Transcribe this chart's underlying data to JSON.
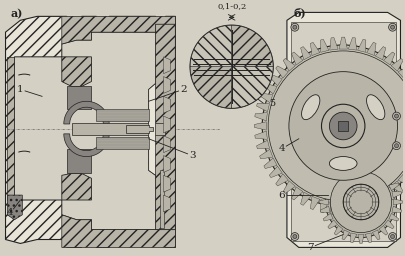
{
  "background_color": "#ccc8ba",
  "label_a": "а)",
  "label_b": "б)",
  "dimension_label": "0,1-0,2",
  "fig_width": 4.06,
  "fig_height": 2.56,
  "dpi": 100,
  "paper_color": "#d4d0c4",
  "line_color": "#222222",
  "hatch_color": "#555555",
  "metal_color": "#b8b4a8",
  "dark_metal": "#888480",
  "light_area": "#e8e4d8"
}
